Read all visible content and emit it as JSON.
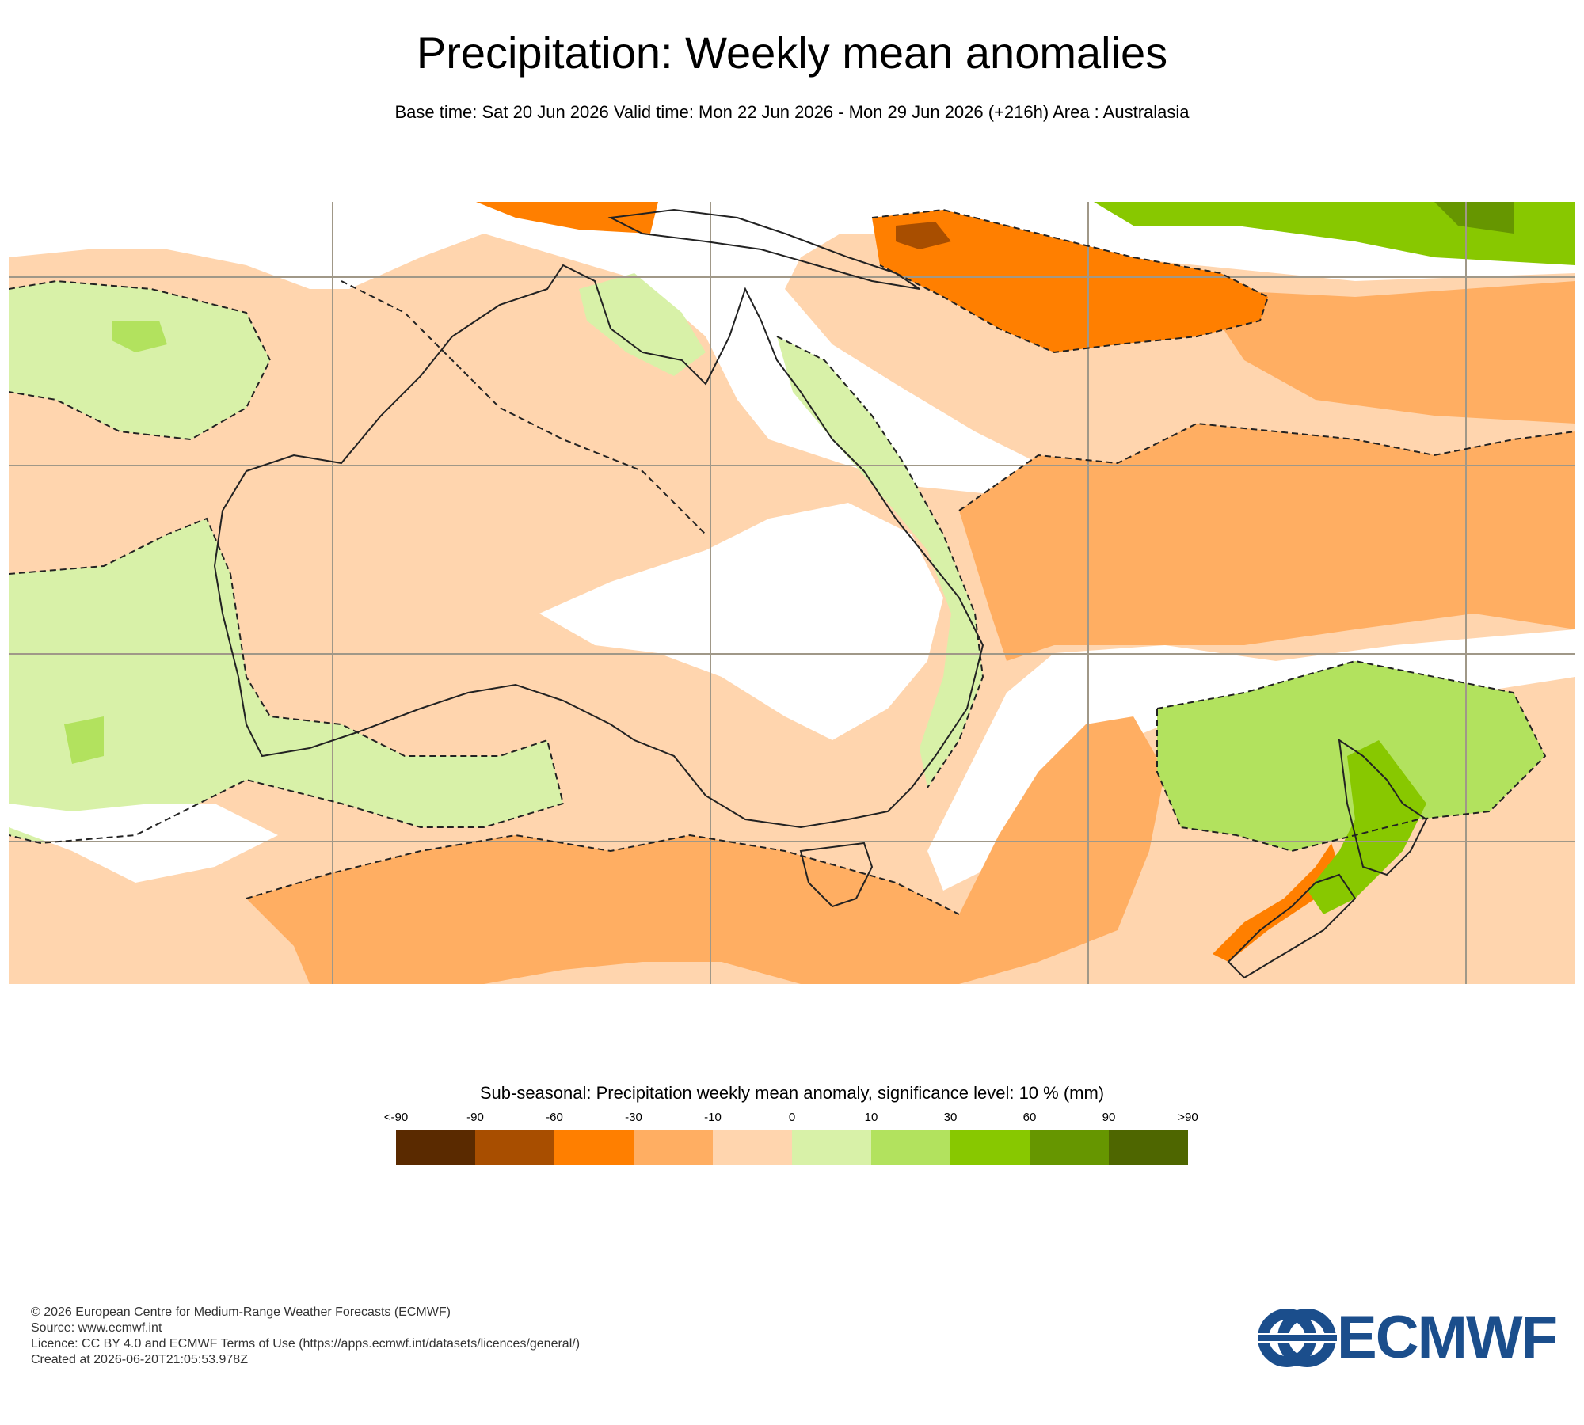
{
  "header": {
    "title": "Precipitation: Weekly mean anomalies",
    "subtitle": "Base time: Sat 20 Jun 2026 Valid time: Mon 22 Jun 2026 - Mon 29 Jun 2026 (+216h) Area : Australasia"
  },
  "legend": {
    "title": "Sub-seasonal: Precipitation weekly mean anomaly, significance level: 10 % (mm)",
    "ticks": [
      "<-90",
      "-90",
      "-60",
      "-30",
      "-10",
      "0",
      "10",
      "30",
      "60",
      "90",
      ">90"
    ],
    "colors": [
      "#5a2a00",
      "#a84e00",
      "#ff7f00",
      "#ffae62",
      "#ffd5ae",
      "#d8f1a8",
      "#b2e25e",
      "#88c800",
      "#669600",
      "#4e6600"
    ]
  },
  "map_colors": {
    "ocean_background": "#ffd5ae",
    "no_signal": "#ffffff",
    "coastline": "#222222",
    "grid": "#a09888"
  },
  "footer": {
    "copyright": "© 2026 European Centre for Medium-Range Weather Forecasts (ECMWF)",
    "source": "Source: www.ecmwf.int",
    "licence": "Licence: CC BY 4.0 and ECMWF Terms of Use (https://apps.ecmwf.int/datasets/licences/general/)",
    "created": "Created at 2026-06-20T21:05:53.978Z"
  },
  "logo": {
    "text": "ECMWF"
  }
}
